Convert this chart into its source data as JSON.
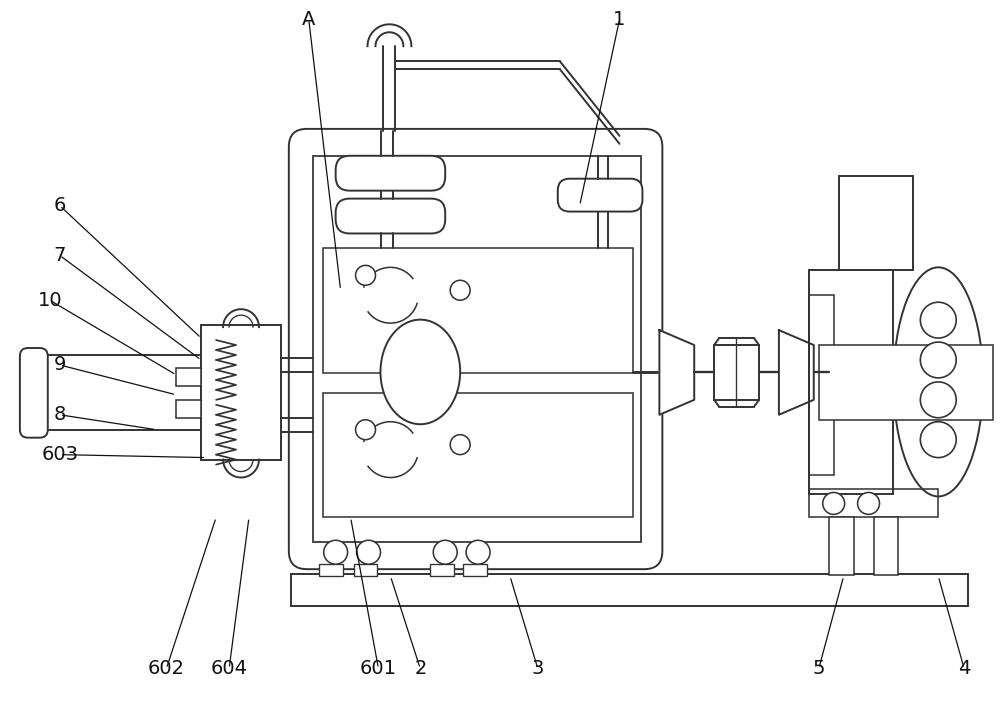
{
  "bg_color": "#ffffff",
  "lc": "#333333",
  "lw": 1.4,
  "figsize": [
    10.0,
    7.1
  ],
  "dpi": 100
}
